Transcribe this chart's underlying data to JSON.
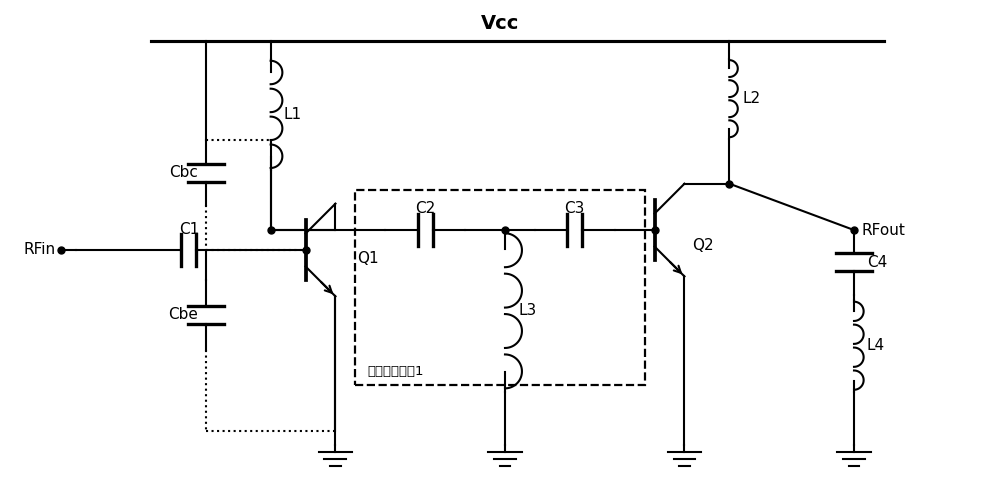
{
  "bg_color": "#ffffff",
  "line_color": "#000000",
  "text_color": "#000000",
  "figsize": [
    10.0,
    4.95
  ],
  "dpi": 100,
  "labels": {
    "vcc": "Vcc",
    "rfin": "RFin",
    "rfout": "RFout",
    "L1": "L1",
    "L2": "L2",
    "L3": "L3",
    "L4": "L4",
    "C1": "C1",
    "C2": "C2",
    "C3": "C3",
    "C4": "C4",
    "Cbc": "Cbc",
    "Cbe": "Cbe",
    "Q1": "Q1",
    "Q2": "Q2",
    "matching": "级间匹配网络1"
  }
}
